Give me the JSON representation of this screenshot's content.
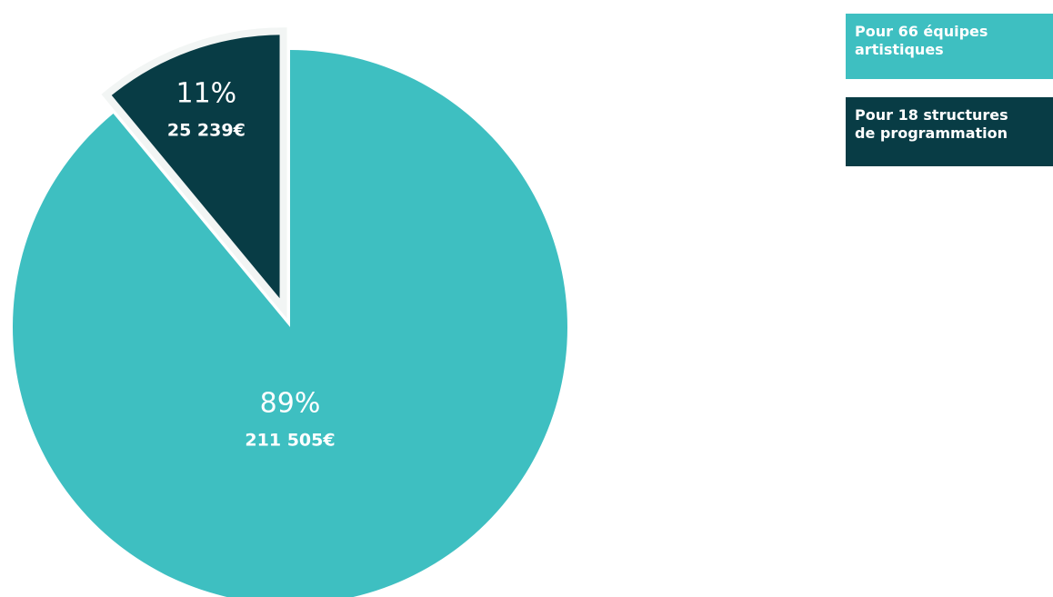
{
  "chart_data": {
    "type": "pie",
    "series": [
      {
        "name": "Pour 66 équipes artistiques",
        "color": "#3ebfc1",
        "values": [
          89
        ],
        "value_labels": [
          "89%"
        ],
        "amounts": [
          211505
        ],
        "amount_labels": [
          "211 505€"
        ]
      },
      {
        "name": "Pour 18 structures de programmation",
        "color": "#083c45",
        "values": [
          11
        ],
        "value_labels": [
          "11%"
        ],
        "amounts": [
          25239
        ],
        "amount_labels": [
          "25 239€"
        ],
        "exploded": true
      }
    ],
    "legend": "top-right"
  }
}
